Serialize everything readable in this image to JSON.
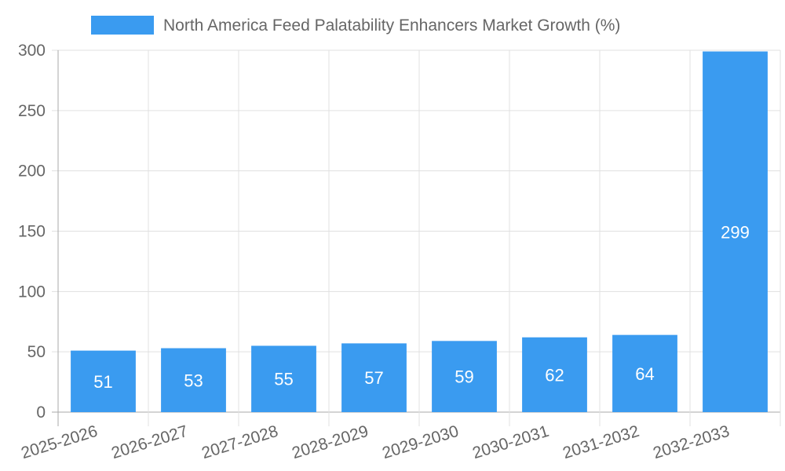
{
  "chart_data": {
    "type": "bar",
    "title": "",
    "xlabel": "",
    "ylabel": "",
    "legend": {
      "label": "North America Feed Palatability Enhancers Market Growth (%)",
      "position": "top"
    },
    "categories": [
      "2025-2026",
      "2026-2027",
      "2027-2028",
      "2028-2029",
      "2029-2030",
      "2030-2031",
      "2031-2032",
      "2032-2033"
    ],
    "values": [
      51,
      53,
      55,
      57,
      59,
      62,
      64,
      299
    ],
    "ylim": [
      0,
      300
    ],
    "yticks": [
      0,
      50,
      100,
      150,
      200,
      250,
      300
    ],
    "grid": true,
    "bar_color": "#3a9bf0",
    "data_label_color": "#ffffff",
    "grid_color": "#e0e0e0",
    "axis_color": "#aaaaaa",
    "text_color": "#666666"
  }
}
